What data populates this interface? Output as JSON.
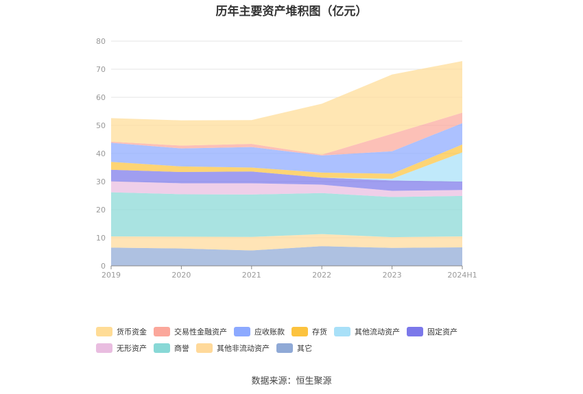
{
  "chart_data": {
    "type": "area",
    "stacked": true,
    "title": "历年主要资产堆积图（亿元）",
    "categories": [
      "2019",
      "2020",
      "2021",
      "2022",
      "2023",
      "2024H1"
    ],
    "ylim": [
      0,
      80
    ],
    "yticks": [
      0,
      10,
      20,
      30,
      40,
      50,
      60,
      70,
      80
    ],
    "grid": true,
    "legend_position": "bottom",
    "series": [
      {
        "name": "其它",
        "color": "#8fa9d6",
        "values": [
          6.5,
          6.2,
          5.5,
          7.0,
          6.4,
          6.6
        ]
      },
      {
        "name": "其他非流动资产",
        "color": "#ffd99a",
        "values": [
          4.0,
          4.2,
          4.8,
          4.3,
          3.8,
          3.9
        ]
      },
      {
        "name": "商誉",
        "color": "#88d8d6",
        "values": [
          15.7,
          15.1,
          15.1,
          14.6,
          14.3,
          14.4
        ]
      },
      {
        "name": "无形资产",
        "color": "#e9bde0",
        "values": [
          3.9,
          3.9,
          4.0,
          3.0,
          2.2,
          2.1
        ]
      },
      {
        "name": "固定资产",
        "color": "#7b78ea",
        "values": [
          4.1,
          4.0,
          4.2,
          2.5,
          3.7,
          3.0
        ]
      },
      {
        "name": "其他流动资产",
        "color": "#a8e0f8",
        "values": [
          0.0,
          0.0,
          0.0,
          0.0,
          0.6,
          10.4
        ]
      },
      {
        "name": "存货",
        "color": "#fcc33f",
        "values": [
          2.8,
          2.0,
          1.4,
          1.8,
          1.8,
          2.8
        ]
      },
      {
        "name": "应收账款",
        "color": "#8ca9ff",
        "values": [
          6.8,
          6.4,
          7.3,
          6.1,
          8.0,
          7.6
        ]
      },
      {
        "name": "交易性金融资产",
        "color": "#fba79b",
        "values": [
          0.4,
          1.0,
          1.1,
          0.3,
          6.2,
          3.7
        ]
      },
      {
        "name": "货币资金",
        "color": "#ffdc96",
        "values": [
          8.4,
          9.0,
          8.5,
          18.1,
          21.1,
          18.4
        ]
      }
    ],
    "legend_rows": [
      [
        "货币资金",
        "交易性金融资产",
        "应收账款",
        "存货",
        "其他流动资产",
        "固定资产"
      ],
      [
        "无形资产",
        "商誉",
        "其他非流动资产",
        "其它"
      ]
    ]
  },
  "source_text": "数据来源：恒生聚源"
}
